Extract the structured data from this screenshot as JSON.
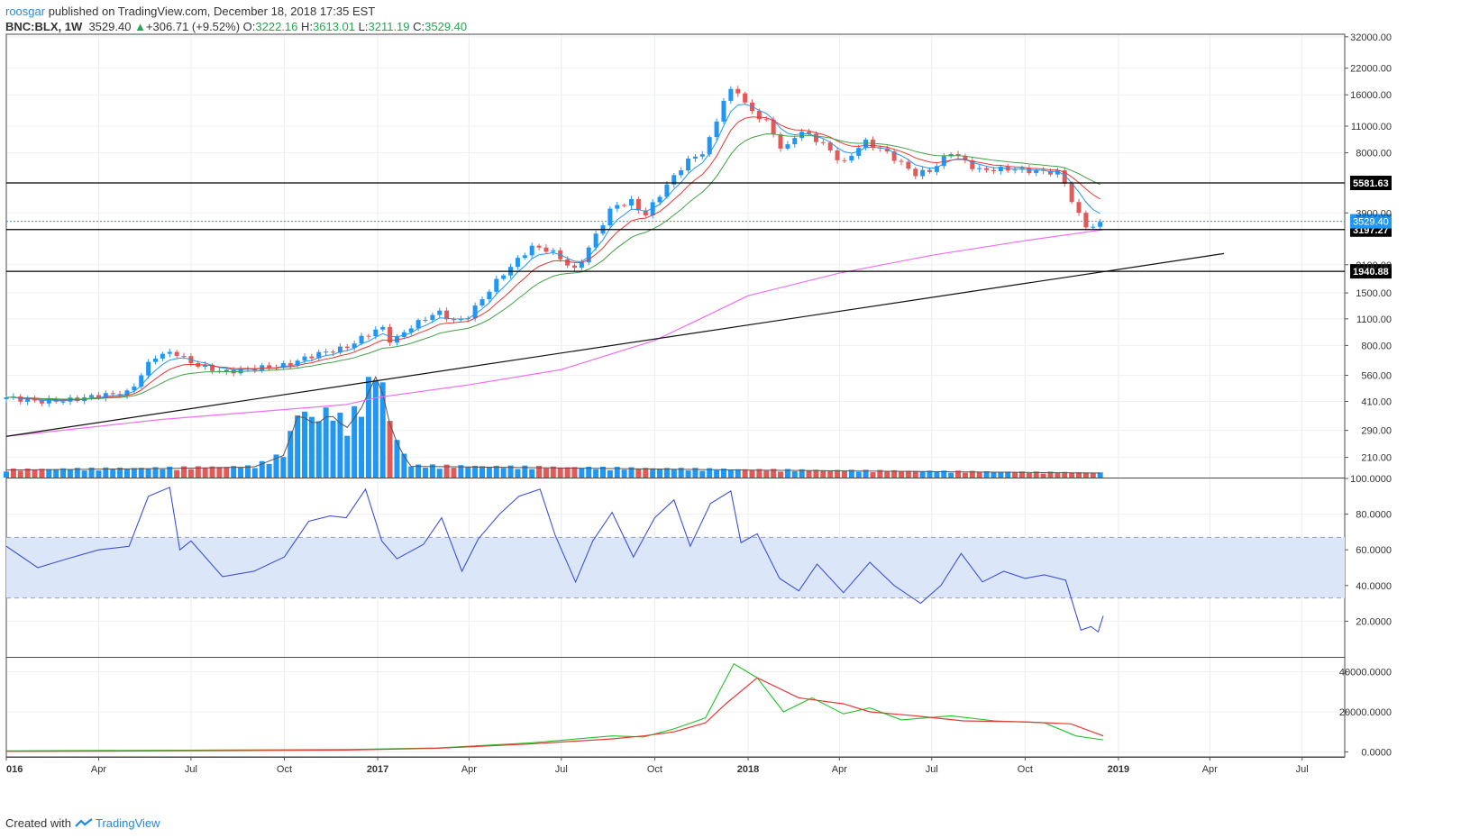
{
  "header": {
    "author": "roosgar",
    "published_text": "published on TradingView.com, December 18, 2018 17:35 EST",
    "symbol": "BNC:BLX, 1W",
    "last": "3529.40",
    "change_arrow": "▲",
    "change": "+306.71 (+9.52%)",
    "o_label": "O:",
    "o": "3222.16",
    "h_label": "H:",
    "h": "3613.01",
    "l_label": "L:",
    "l": "3211.19",
    "c_label": "C:",
    "c": "3529.40"
  },
  "footer": {
    "created_with": "Created with",
    "brand": "TradingView"
  },
  "colors": {
    "up": "#2196f3",
    "down": "#e05a5a",
    "ema_fast": "#2196f3",
    "ema_mid": "#e53935",
    "ema_slow": "#43a047",
    "ma_long": "#f06ef0",
    "rsi": "#3f51d8",
    "rsi_band": "#dbe7f8",
    "vol_ma": "#555555",
    "cur_price_tag": "#2196f3",
    "level_tag": "#000000",
    "obv_green": "#22c32a",
    "obv_red": "#e53935"
  },
  "chart_data": [
    {
      "type": "candlestick",
      "title": "BNC:BLX, 1W",
      "scale": "log",
      "xlabel": "",
      "ylabel": "",
      "x_ticks": [
        "016",
        "Apr",
        "Jul",
        "Oct",
        "2017",
        "Apr",
        "Jul",
        "Oct",
        "2018",
        "Apr",
        "Jul",
        "Oct",
        "2019",
        "Apr",
        "Jul"
      ],
      "y_ticks": [
        32000,
        22000,
        16000,
        11000,
        8000,
        3900,
        2100,
        1500,
        1100,
        800,
        560,
        410,
        290,
        210
      ],
      "y_tick_labels": [
        "32000.00",
        "22000.00",
        "16000.00",
        "11000.00",
        "8000.00",
        "3900.00",
        "2100.00",
        "1500.00",
        "1100.00",
        "800.00",
        "560.00",
        "410.00",
        "290.00",
        "210.00"
      ],
      "ylim": [
        165,
        33000
      ],
      "x_range": [
        "2016-01-01",
        "2019-08-12"
      ],
      "close_points": [
        [
          "2016-01-01",
          430
        ],
        [
          "2016-02-01",
          410
        ],
        [
          "2016-03-01",
          415
        ],
        [
          "2016-04-01",
          440
        ],
        [
          "2016-05-01",
          455
        ],
        [
          "2016-05-25",
          700
        ],
        [
          "2016-06-15",
          740
        ],
        [
          "2016-07-01",
          650
        ],
        [
          "2016-08-01",
          580
        ],
        [
          "2016-09-01",
          610
        ],
        [
          "2016-10-01",
          630
        ],
        [
          "2016-11-01",
          720
        ],
        [
          "2016-12-01",
          780
        ],
        [
          "2016-12-20",
          900
        ],
        [
          "2017-01-05",
          1000
        ],
        [
          "2017-01-15",
          820
        ],
        [
          "2017-02-01",
          990
        ],
        [
          "2017-03-01",
          1200
        ],
        [
          "2017-03-20",
          1050
        ],
        [
          "2017-04-01",
          1150
        ],
        [
          "2017-05-01",
          1800
        ],
        [
          "2017-06-01",
          2600
        ],
        [
          "2017-06-20",
          2500
        ],
        [
          "2017-07-15",
          1950
        ],
        [
          "2017-08-01",
          2800
        ],
        [
          "2017-08-20",
          4200
        ],
        [
          "2017-09-10",
          4500
        ],
        [
          "2017-09-20",
          3700
        ],
        [
          "2017-10-10",
          5200
        ],
        [
          "2017-11-01",
          7200
        ],
        [
          "2017-11-20",
          8200
        ],
        [
          "2017-12-10",
          16000
        ],
        [
          "2017-12-20",
          17500
        ],
        [
          "2018-01-01",
          13500
        ],
        [
          "2018-01-20",
          11500
        ],
        [
          "2018-02-05",
          8000
        ],
        [
          "2018-02-20",
          10500
        ],
        [
          "2018-03-15",
          9000
        ],
        [
          "2018-04-05",
          7000
        ],
        [
          "2018-04-25",
          9200
        ],
        [
          "2018-05-15",
          8200
        ],
        [
          "2018-06-15",
          6200
        ],
        [
          "2018-07-01",
          6500
        ],
        [
          "2018-07-20",
          8100
        ],
        [
          "2018-08-15",
          6500
        ],
        [
          "2018-09-15",
          6600
        ],
        [
          "2018-10-15",
          6400
        ],
        [
          "2018-11-05",
          6300
        ],
        [
          "2018-11-20",
          4000
        ],
        [
          "2018-12-01",
          3300
        ],
        [
          "2018-12-10",
          3300
        ],
        [
          "2018-12-17",
          3529
        ]
      ],
      "sma_long": [
        [
          "2016-01-01",
          270
        ],
        [
          "2016-06-01",
          330
        ],
        [
          "2016-12-01",
          395
        ],
        [
          "2017-01-01",
          430
        ],
        [
          "2017-04-01",
          500
        ],
        [
          "2017-07-01",
          600
        ],
        [
          "2017-10-01",
          850
        ],
        [
          "2017-11-15",
          1100
        ],
        [
          "2018-01-01",
          1450
        ],
        [
          "2018-04-01",
          1900
        ],
        [
          "2018-07-01",
          2350
        ],
        [
          "2018-10-01",
          2800
        ],
        [
          "2018-12-17",
          3190
        ]
      ],
      "trendline": {
        "x": [
          "2016-01-01",
          "2019-04-15"
        ],
        "y": [
          270,
          2400
        ]
      },
      "levels": [
        {
          "value": 5581.63,
          "label": "5581.63"
        },
        {
          "value": 3197.27,
          "label": "3197.27"
        },
        {
          "value": 1940.88,
          "label": "1940.88"
        }
      ],
      "current_price": {
        "value": 3529.4,
        "label": "3529.40"
      }
    },
    {
      "type": "bar",
      "title": "",
      "xlabel": "",
      "ylabel": "",
      "series": [
        {
          "name": "",
          "values": [
            [
              "2016-01-01",
              10
            ],
            [
              "2016-06-01",
              12
            ],
            [
              "2016-09-01",
              14
            ],
            [
              "2016-10-01",
              30
            ],
            [
              "2016-10-15",
              85
            ],
            [
              "2016-11-01",
              70
            ],
            [
              "2016-11-15",
              85
            ],
            [
              "2016-12-01",
              65
            ],
            [
              "2016-12-15",
              90
            ],
            [
              "2017-01-01",
              140
            ],
            [
              "2017-01-15",
              60
            ],
            [
              "2017-02-01",
              15
            ],
            [
              "2018-01-01",
              10
            ],
            [
              "2018-12-17",
              6
            ]
          ]
        }
      ],
      "ylim": [
        0,
        150
      ]
    },
    {
      "type": "line",
      "title": "",
      "xlabel": "",
      "ylabel": "",
      "y_ticks": [
        100,
        80,
        60,
        40,
        20
      ],
      "y_tick_labels": [
        "100.0000",
        "80.0000",
        "60.0000",
        "40.0000",
        "20.0000"
      ],
      "ylim": [
        0,
        100
      ],
      "band": [
        33,
        67
      ],
      "series": [
        {
          "name": "",
          "values": [
            [
              "2016-01-01",
              62
            ],
            [
              "2016-02-01",
              50
            ],
            [
              "2016-03-01",
              55
            ],
            [
              "2016-04-01",
              60
            ],
            [
              "2016-05-01",
              62
            ],
            [
              "2016-05-20",
              90
            ],
            [
              "2016-06-10",
              95
            ],
            [
              "2016-06-20",
              60
            ],
            [
              "2016-07-01",
              65
            ],
            [
              "2016-08-01",
              45
            ],
            [
              "2016-09-01",
              48
            ],
            [
              "2016-10-01",
              56
            ],
            [
              "2016-10-25",
              76
            ],
            [
              "2016-11-15",
              79
            ],
            [
              "2016-12-01",
              78
            ],
            [
              "2016-12-20",
              94
            ],
            [
              "2017-01-05",
              65
            ],
            [
              "2017-01-20",
              55
            ],
            [
              "2017-02-15",
              63
            ],
            [
              "2017-03-05",
              78
            ],
            [
              "2017-03-25",
              48
            ],
            [
              "2017-04-10",
              66
            ],
            [
              "2017-05-01",
              80
            ],
            [
              "2017-05-20",
              90
            ],
            [
              "2017-06-10",
              94
            ],
            [
              "2017-06-25",
              68
            ],
            [
              "2017-07-15",
              42
            ],
            [
              "2017-08-01",
              65
            ],
            [
              "2017-08-20",
              81
            ],
            [
              "2017-09-10",
              56
            ],
            [
              "2017-10-01",
              78
            ],
            [
              "2017-10-20",
              88
            ],
            [
              "2017-11-05",
              62
            ],
            [
              "2017-11-25",
              86
            ],
            [
              "2017-12-15",
              93
            ],
            [
              "2017-12-25",
              64
            ],
            [
              "2018-01-10",
              69
            ],
            [
              "2018-02-01",
              44
            ],
            [
              "2018-02-20",
              37
            ],
            [
              "2018-03-10",
              52
            ],
            [
              "2018-04-05",
              36
            ],
            [
              "2018-05-01",
              53
            ],
            [
              "2018-05-25",
              40
            ],
            [
              "2018-06-20",
              30
            ],
            [
              "2018-07-10",
              40
            ],
            [
              "2018-07-30",
              58
            ],
            [
              "2018-08-20",
              42
            ],
            [
              "2018-09-10",
              48
            ],
            [
              "2018-10-01",
              44
            ],
            [
              "2018-10-20",
              46
            ],
            [
              "2018-11-10",
              43
            ],
            [
              "2018-11-25",
              15
            ],
            [
              "2018-12-05",
              17
            ],
            [
              "2018-12-12",
              14
            ],
            [
              "2018-12-17",
              23
            ]
          ]
        }
      ]
    },
    {
      "type": "line",
      "title": "",
      "xlabel": "",
      "ylabel": "",
      "y_ticks": [
        40000,
        20000,
        0
      ],
      "y_tick_labels": [
        "40000.0000",
        "20000.0000",
        "0.0000"
      ],
      "ylim": [
        -2500,
        47000
      ],
      "series": [
        {
          "name": "",
          "values": [
            [
              "2016-01-01",
              500
            ],
            [
              "2016-06-01",
              800
            ],
            [
              "2016-12-01",
              1200
            ],
            [
              "2017-03-01",
              2000
            ],
            [
              "2017-06-01",
              4500
            ],
            [
              "2017-08-20",
              8000
            ],
            [
              "2017-09-20",
              7500
            ],
            [
              "2017-10-20",
              11500
            ],
            [
              "2017-11-20",
              17000
            ],
            [
              "2017-12-18",
              44000
            ],
            [
              "2018-01-10",
              37000
            ],
            [
              "2018-02-05",
              20000
            ],
            [
              "2018-03-05",
              27000
            ],
            [
              "2018-04-05",
              19000
            ],
            [
              "2018-05-01",
              22000
            ],
            [
              "2018-06-01",
              16000
            ],
            [
              "2018-07-20",
              18000
            ],
            [
              "2018-09-01",
              15500
            ],
            [
              "2018-10-20",
              14500
            ],
            [
              "2018-11-20",
              8000
            ],
            [
              "2018-12-17",
              6000
            ]
          ]
        },
        {
          "name": "",
          "values": [
            [
              "2016-01-01",
              300
            ],
            [
              "2016-06-01",
              500
            ],
            [
              "2016-12-01",
              900
            ],
            [
              "2017-03-01",
              1800
            ],
            [
              "2017-06-01",
              4000
            ],
            [
              "2017-08-20",
              6500
            ],
            [
              "2017-09-20",
              8000
            ],
            [
              "2017-10-20",
              10000
            ],
            [
              "2017-11-20",
              14500
            ],
            [
              "2017-12-10",
              24000
            ],
            [
              "2018-01-10",
              37000
            ],
            [
              "2018-02-20",
              27000
            ],
            [
              "2018-04-05",
              24000
            ],
            [
              "2018-05-01",
              20000
            ],
            [
              "2018-06-15",
              18000
            ],
            [
              "2018-08-01",
              15500
            ],
            [
              "2018-10-01",
              15000
            ],
            [
              "2018-11-15",
              14000
            ],
            [
              "2018-12-17",
              8000
            ]
          ]
        }
      ]
    }
  ]
}
